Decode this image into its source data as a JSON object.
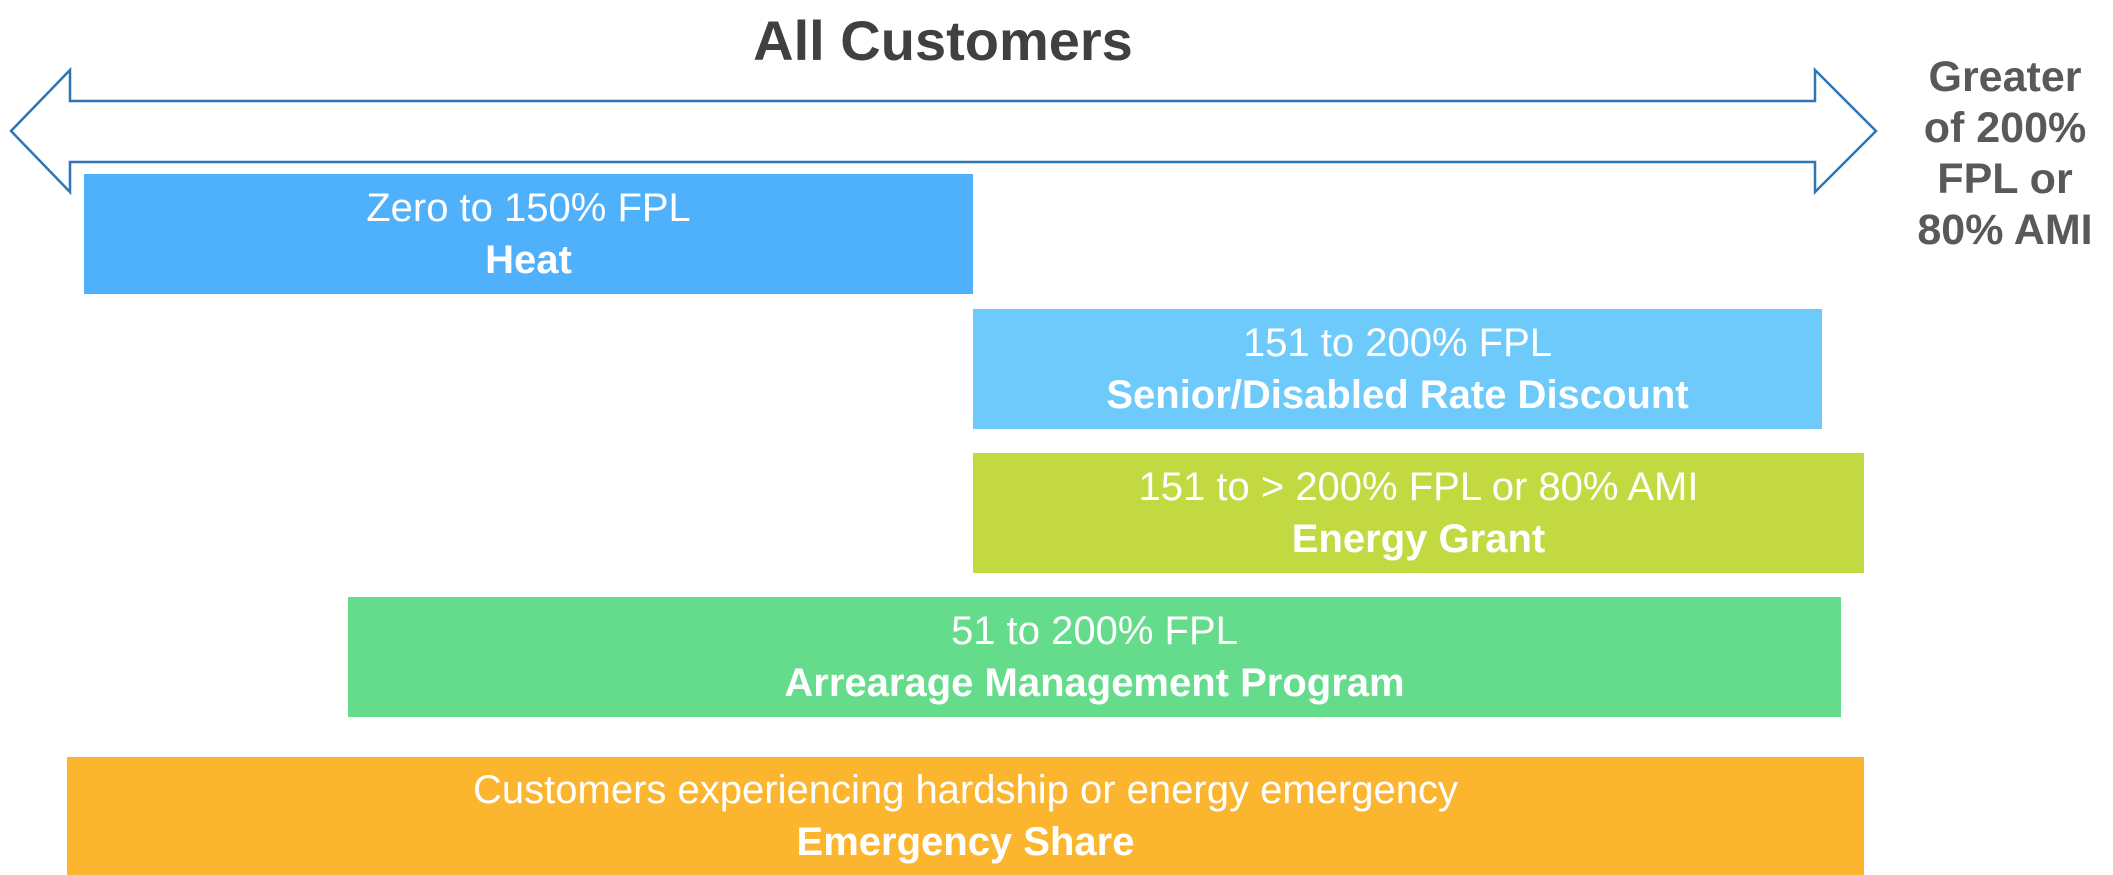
{
  "title": "All Customers",
  "limit_label": [
    "Greater",
    "of 200%",
    "FPL or",
    "80% AMI"
  ],
  "programs": [
    {
      "range": "Zero to 150% FPL",
      "name": "Heat"
    },
    {
      "range": "151 to 200% FPL",
      "name": "Senior/Disabled Rate Discount"
    },
    {
      "range": "151 to > 200% FPL or 80% AMI",
      "name": "Energy Grant"
    },
    {
      "range": "51 to 200% FPL",
      "name": "Arrearage Management Program"
    },
    {
      "range": "Customers experiencing hardship or energy emergency",
      "name": "Emergency Share"
    }
  ]
}
